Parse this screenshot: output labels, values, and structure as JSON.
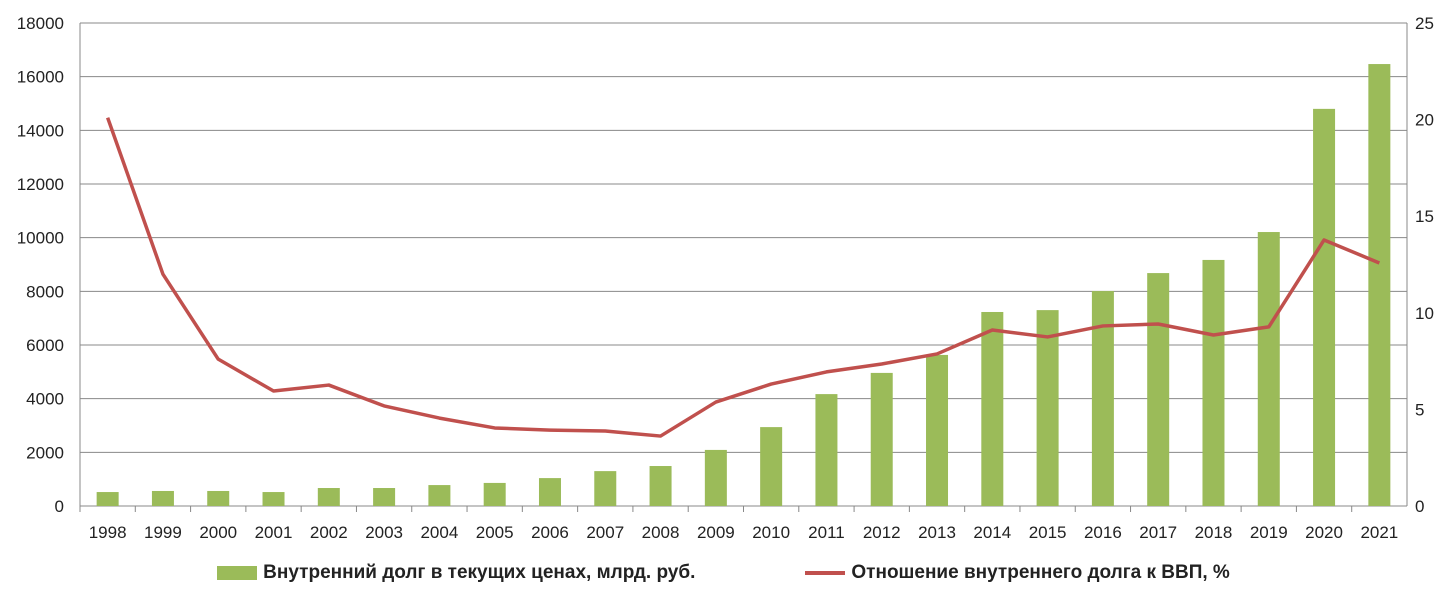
{
  "chart_data": {
    "type": "bar+line",
    "title": "",
    "categories": [
      "1998",
      "1999",
      "2000",
      "2001",
      "2002",
      "2003",
      "2004",
      "2005",
      "2006",
      "2007",
      "2008",
      "2009",
      "2010",
      "2011",
      "2012",
      "2013",
      "2014",
      "2015",
      "2016",
      "2017",
      "2018",
      "2019",
      "2020",
      "2021"
    ],
    "series": [
      {
        "name": "Внутренний долг в текущих ценах, млрд. руб.",
        "type": "bar",
        "axis": "left",
        "color": "#9bbb59",
        "values": [
          520,
          560,
          560,
          520,
          670,
          670,
          780,
          860,
          1040,
          1300,
          1490,
          2090,
          2940,
          4170,
          4960,
          5630,
          7230,
          7300,
          8010,
          8680,
          9170,
          10210,
          14800,
          16470
        ]
      },
      {
        "name": "Отношение внутреннего долга к ВВП, %",
        "type": "line",
        "axis": "right",
        "color": "#c0504d",
        "values": [
          20.1,
          12.0,
          7.6,
          5.95,
          6.26,
          5.18,
          4.55,
          4.04,
          3.93,
          3.88,
          3.62,
          5.38,
          6.31,
          6.94,
          7.35,
          7.87,
          9.11,
          8.75,
          9.32,
          9.42,
          8.85,
          9.27,
          13.77,
          12.58
        ]
      }
    ],
    "y_left": {
      "range": [
        0,
        18000
      ],
      "ticks": [
        "0",
        "2000",
        "4000",
        "6000",
        "8000",
        "10000",
        "12000",
        "14000",
        "16000",
        "18000"
      ]
    },
    "y_right": {
      "range": [
        0,
        25
      ],
      "ticks": [
        "0",
        "5",
        "10",
        "15",
        "20",
        "25"
      ]
    },
    "grid": true,
    "legend_position": "bottom"
  }
}
